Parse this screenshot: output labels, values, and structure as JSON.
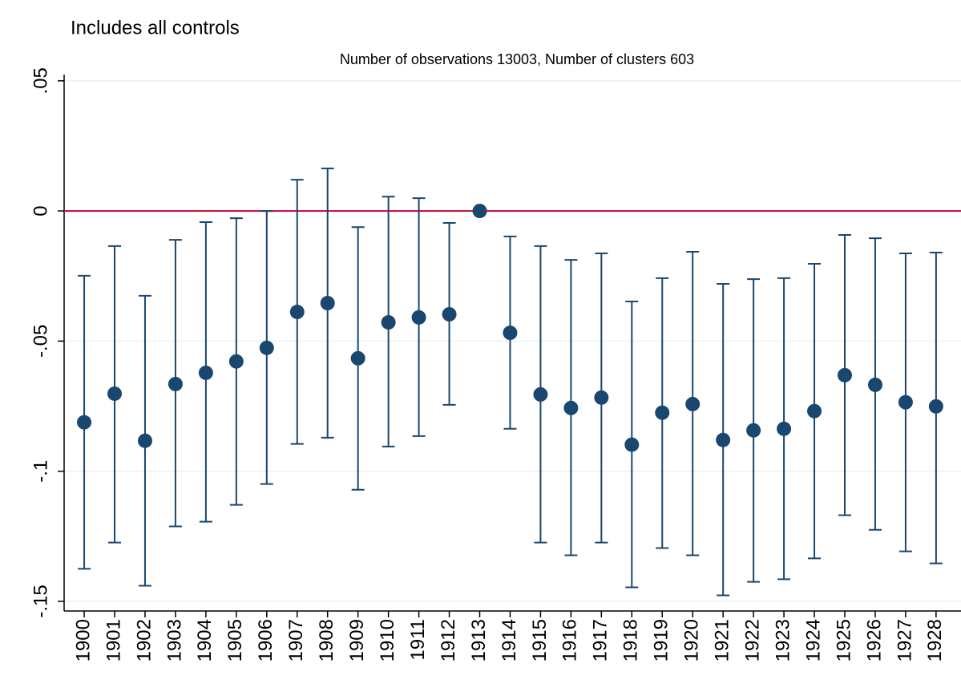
{
  "chart_data": {
    "type": "coefplot",
    "title": "Includes all controls",
    "subtitle": "Number of observations 13003, Number of clusters 603",
    "x": [
      1900,
      1901,
      1902,
      1903,
      1904,
      1905,
      1906,
      1907,
      1908,
      1909,
      1910,
      1911,
      1912,
      1913,
      1914,
      1915,
      1916,
      1917,
      1918,
      1919,
      1920,
      1921,
      1922,
      1923,
      1924,
      1925,
      1926,
      1927,
      1928
    ],
    "xlim": [
      1899.34,
      1928.82
    ],
    "values": [
      -0.0812,
      -0.0702,
      -0.0883,
      -0.0665,
      -0.0622,
      -0.0578,
      -0.0526,
      -0.0388,
      -0.0354,
      -0.0566,
      -0.0428,
      -0.0409,
      -0.0397,
      0,
      -0.0468,
      -0.0705,
      -0.0757,
      -0.0717,
      -0.0898,
      -0.0775,
      -0.0742,
      -0.088,
      -0.0843,
      -0.0837,
      -0.0769,
      -0.0631,
      -0.0668,
      -0.0735,
      -0.0751
    ],
    "lower": [
      -0.1375,
      -0.1274,
      -0.144,
      -0.1212,
      -0.1194,
      -0.1129,
      -0.1049,
      -0.0895,
      -0.0871,
      -0.1071,
      -0.0905,
      -0.0865,
      -0.0745,
      null,
      -0.0837,
      -0.1274,
      -0.1323,
      -0.1274,
      -0.1446,
      -0.1295,
      -0.1323,
      -0.1477,
      -0.1425,
      -0.1415,
      -0.1335,
      -0.1169,
      -0.1225,
      -0.1308,
      -0.1354
    ],
    "upper": [
      -0.0249,
      -0.0135,
      -0.0326,
      -0.0111,
      -0.0043,
      -0.0028,
      0,
      0.012,
      0.0163,
      -0.0062,
      0.0055,
      0.0049,
      -0.0046,
      null,
      -0.0098,
      -0.0135,
      -0.0188,
      -0.0163,
      -0.0348,
      -0.0258,
      -0.0157,
      -0.028,
      -0.0262,
      -0.0258,
      -0.0203,
      -0.0092,
      -0.0105,
      -0.0163,
      -0.016
    ],
    "color": "#1a476f",
    "ylim": [
      -0.1537,
      0.0524
    ],
    "yticks": [
      {
        "value": 0.05,
        "label": ".05"
      },
      0,
      {
        "value": -0.05,
        "label": "-.05"
      },
      {
        "value": -0.1,
        "label": "-.1"
      },
      {
        "value": -0.15,
        "label": "-.15"
      }
    ],
    "grid": true,
    "reference_line": 0,
    "reference_color": "#c10534"
  }
}
